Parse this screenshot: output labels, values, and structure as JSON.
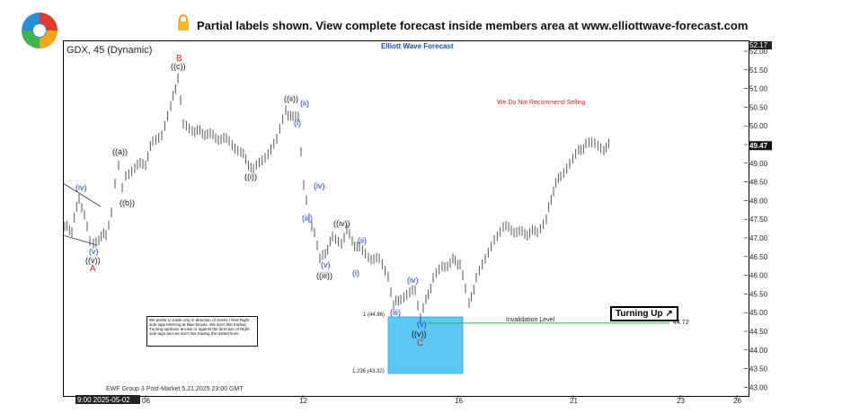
{
  "banner": {
    "text": "Partial labels shown. View complete forecast inside members area at www.elliottwave-forecast.com",
    "lock_icon": "lock-icon",
    "logo_icon": "ewf-logo-icon"
  },
  "chart_data": {
    "type": "candlestick",
    "symbol_title": "GDX, 45 (Dynamic)",
    "brand": "Elliott Wave Forecast",
    "footer": "EWF Group 3 Post-Market 5.21.2025 23:00 GMT",
    "ylim": [
      43.0,
      52.17
    ],
    "y_ticks": [
      "52.00",
      "51.50",
      "51.00",
      "50.50",
      "50.00",
      "49.50",
      "49.00",
      "48.50",
      "48.00",
      "47.50",
      "47.00",
      "46.50",
      "46.00",
      "45.50",
      "45.00",
      "44.50",
      "44.00",
      "43.50",
      "43.00"
    ],
    "last_price": "49.47",
    "top_price": "52.17",
    "x_ticks": [
      "9:00 2025-05-02",
      "06",
      "12",
      "16",
      "21",
      "23",
      "26"
    ],
    "invalidation": {
      "label": "Invalidation Level",
      "value": "44.72"
    },
    "fib_labels": [
      "1 (44.86)",
      "1.236 (43.32)"
    ],
    "disclaimer": "We Do Not Recommend Selling",
    "turning_up": "Turning Up",
    "note": "We prefer to trade only in direction of Green / Red Right side tags entering at Blue Boxes. We don't like trading Turning up/down arrows or against the direction of Right side tags and we don't like trading the dotted lines.",
    "wave_labels": [
      {
        "text": "(iv)",
        "color": "blue"
      },
      {
        "text": "(v)",
        "color": "blue"
      },
      {
        "text": "((v))",
        "color": "black"
      },
      {
        "text": "A",
        "color": "red"
      },
      {
        "text": "((a))",
        "color": "black"
      },
      {
        "text": "((b))",
        "color": "black"
      },
      {
        "text": "B",
        "color": "red"
      },
      {
        "text": "((c))",
        "color": "black"
      },
      {
        "text": "((i))",
        "color": "black"
      },
      {
        "text": "((ii))",
        "color": "black"
      },
      {
        "text": "(ii)",
        "color": "blue"
      },
      {
        "text": "(i)",
        "color": "blue"
      },
      {
        "text": "(iv)",
        "color": "blue"
      },
      {
        "text": "(iii)",
        "color": "blue"
      },
      {
        "text": "(v)",
        "color": "blue"
      },
      {
        "text": "((iii))",
        "color": "black"
      },
      {
        "text": "((iv))",
        "color": "black"
      },
      {
        "text": "(ii)",
        "color": "blue"
      },
      {
        "text": "(i)",
        "color": "blue"
      },
      {
        "text": "(iii)",
        "color": "blue"
      },
      {
        "text": "(iv)",
        "color": "blue"
      },
      {
        "text": "(v)",
        "color": "blue"
      },
      {
        "text": "((v))",
        "color": "black"
      },
      {
        "text": "C",
        "color": "red"
      }
    ],
    "colors": {
      "blue_box": "#5bc8f5",
      "invalid_line": "#2fb04a",
      "red": "#e02020",
      "blue": "#1a3fc0"
    }
  }
}
